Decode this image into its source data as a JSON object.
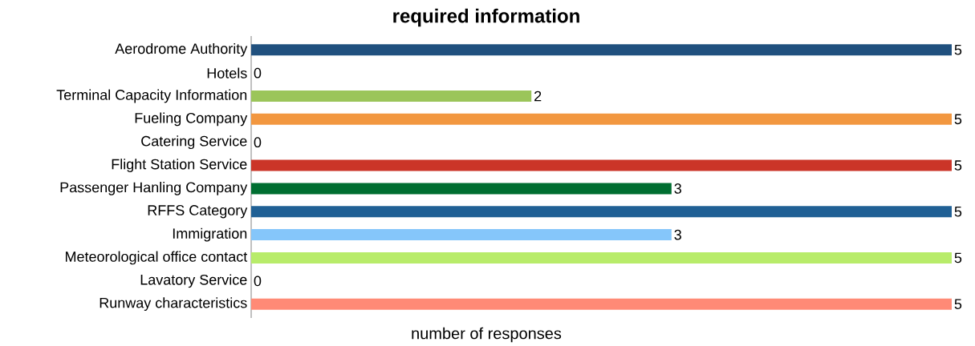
{
  "chart_data": {
    "type": "bar",
    "orientation": "horizontal",
    "title": "required information",
    "xlabel": "number of responses",
    "categories": [
      "Aerodrome Authority",
      "Hotels",
      "Terminal Capacity Information",
      "Fueling Company",
      "Catering Service",
      "Flight Station Service",
      "Passenger Hanling Company",
      "RFFS Category",
      "Immigration",
      "Meteorological office contact",
      "Lavatory Service",
      "Runway characteristics"
    ],
    "values": [
      5,
      0,
      2,
      5,
      0,
      5,
      3,
      5,
      3,
      5,
      0,
      5
    ],
    "colors": [
      "#20507e",
      null,
      "#9bc55a",
      "#f29740",
      null,
      "#cb3528",
      "#006e31",
      "#206095",
      "#85c6fa",
      "#b8ec6a",
      null,
      "#ff8a76"
    ],
    "data_labels": true
  }
}
